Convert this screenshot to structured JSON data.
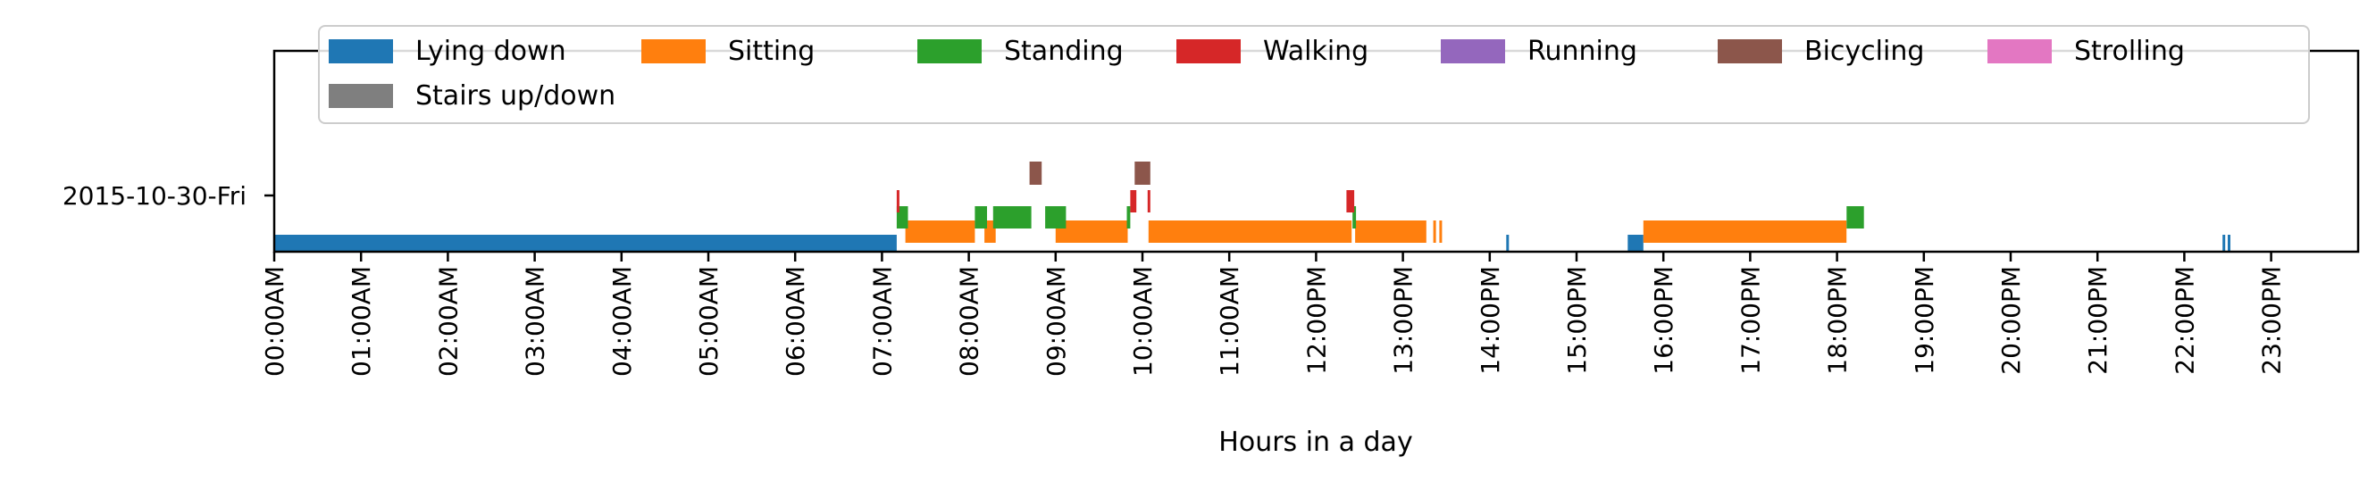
{
  "chart_data": {
    "type": "timeline",
    "title": "",
    "xlabel": "Hours in a day",
    "ylabel": "",
    "xlim": [
      0,
      24
    ],
    "x_unit": "hours",
    "grid": false,
    "legend_position": "top",
    "row_label": "2015-10-30-Fri",
    "x_tick_labels": [
      "00:00AM",
      "01:00AM",
      "02:00AM",
      "03:00AM",
      "04:00AM",
      "05:00AM",
      "06:00AM",
      "07:00AM",
      "08:00AM",
      "09:00AM",
      "10:00AM",
      "11:00AM",
      "12:00PM",
      "13:00PM",
      "14:00PM",
      "15:00PM",
      "16:00PM",
      "17:00PM",
      "18:00PM",
      "19:00PM",
      "20:00PM",
      "21:00PM",
      "22:00PM",
      "23:00PM"
    ],
    "series": [
      {
        "name": "Lying down",
        "color": "#1f77b4",
        "level": 0,
        "intervals": [
          [
            0.0,
            7.17
          ],
          [
            14.19,
            14.22
          ],
          [
            15.59,
            15.77
          ],
          [
            22.44,
            22.47
          ],
          [
            22.5,
            22.53
          ]
        ]
      },
      {
        "name": "Sitting",
        "color": "#ff7f0e",
        "level": 1,
        "intervals": [
          [
            7.27,
            8.07
          ],
          [
            8.18,
            8.31
          ],
          [
            9.0,
            9.83
          ],
          [
            10.07,
            12.41
          ],
          [
            12.45,
            13.27
          ],
          [
            13.35,
            13.38
          ],
          [
            13.42,
            13.45
          ],
          [
            15.77,
            18.11
          ]
        ]
      },
      {
        "name": "Standing",
        "color": "#2ca02c",
        "level": 2,
        "intervals": [
          [
            7.17,
            7.3
          ],
          [
            8.07,
            8.21
          ],
          [
            8.28,
            8.72
          ],
          [
            8.88,
            9.12
          ],
          [
            9.82,
            9.86
          ],
          [
            12.42,
            12.46
          ],
          [
            18.11,
            18.31
          ]
        ]
      },
      {
        "name": "Walking",
        "color": "#d62728",
        "level": 3,
        "intervals": [
          [
            7.17,
            7.2
          ],
          [
            9.86,
            9.93
          ],
          [
            10.06,
            10.09
          ],
          [
            12.35,
            12.44
          ]
        ]
      },
      {
        "name": "Running",
        "color": "#9467bd",
        "level": 4,
        "intervals": []
      },
      {
        "name": "Bicycling",
        "color": "#8c564b",
        "level": 4,
        "intervals": [
          [
            8.7,
            8.84
          ],
          [
            9.91,
            10.09
          ]
        ]
      },
      {
        "name": "Strolling",
        "color": "#e377c2",
        "level": 4,
        "intervals": []
      },
      {
        "name": "Stairs up/down",
        "color": "#7f7f7f",
        "level": 4,
        "intervals": []
      }
    ]
  }
}
